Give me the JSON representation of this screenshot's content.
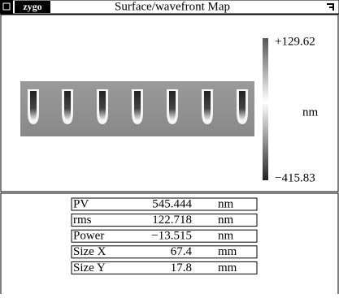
{
  "window": {
    "logo": "zygo",
    "title": "Surface/wavefront Map"
  },
  "colorbar": {
    "max": "+129.62",
    "unit": "nm",
    "min": "−415.83"
  },
  "table": {
    "rows": [
      [
        "PV",
        "545.444",
        "nm"
      ],
      [
        "rms",
        "122.718",
        "nm"
      ],
      [
        "Power",
        "−13.515",
        "nm"
      ],
      [
        "Size X",
        "67.4",
        "mm"
      ],
      [
        "Size Y",
        "17.8",
        "mm"
      ]
    ]
  }
}
